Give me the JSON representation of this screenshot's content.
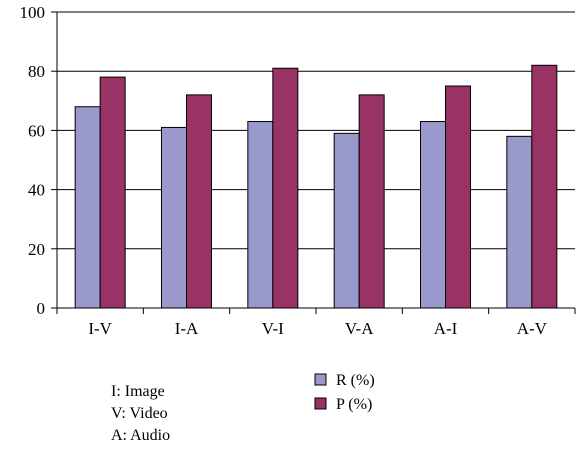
{
  "chart_data": {
    "type": "bar",
    "categories": [
      "I-V",
      "I-A",
      "V-I",
      "V-A",
      "A-I",
      "A-V"
    ],
    "series": [
      {
        "name": "R (%)",
        "values": [
          68,
          61,
          63,
          59,
          63,
          58
        ],
        "color": "#9999cc"
      },
      {
        "name": "P (%)",
        "values": [
          78,
          72,
          81,
          72,
          75,
          82
        ],
        "color": "#993366"
      }
    ],
    "ylim": [
      0,
      100
    ],
    "yticks": [
      0,
      20,
      40,
      60,
      80,
      100
    ],
    "grid": "horizontal",
    "legend_position": "bottom-center",
    "notes": [
      "I: Image",
      "V: Video",
      "A: Audio"
    ]
  }
}
